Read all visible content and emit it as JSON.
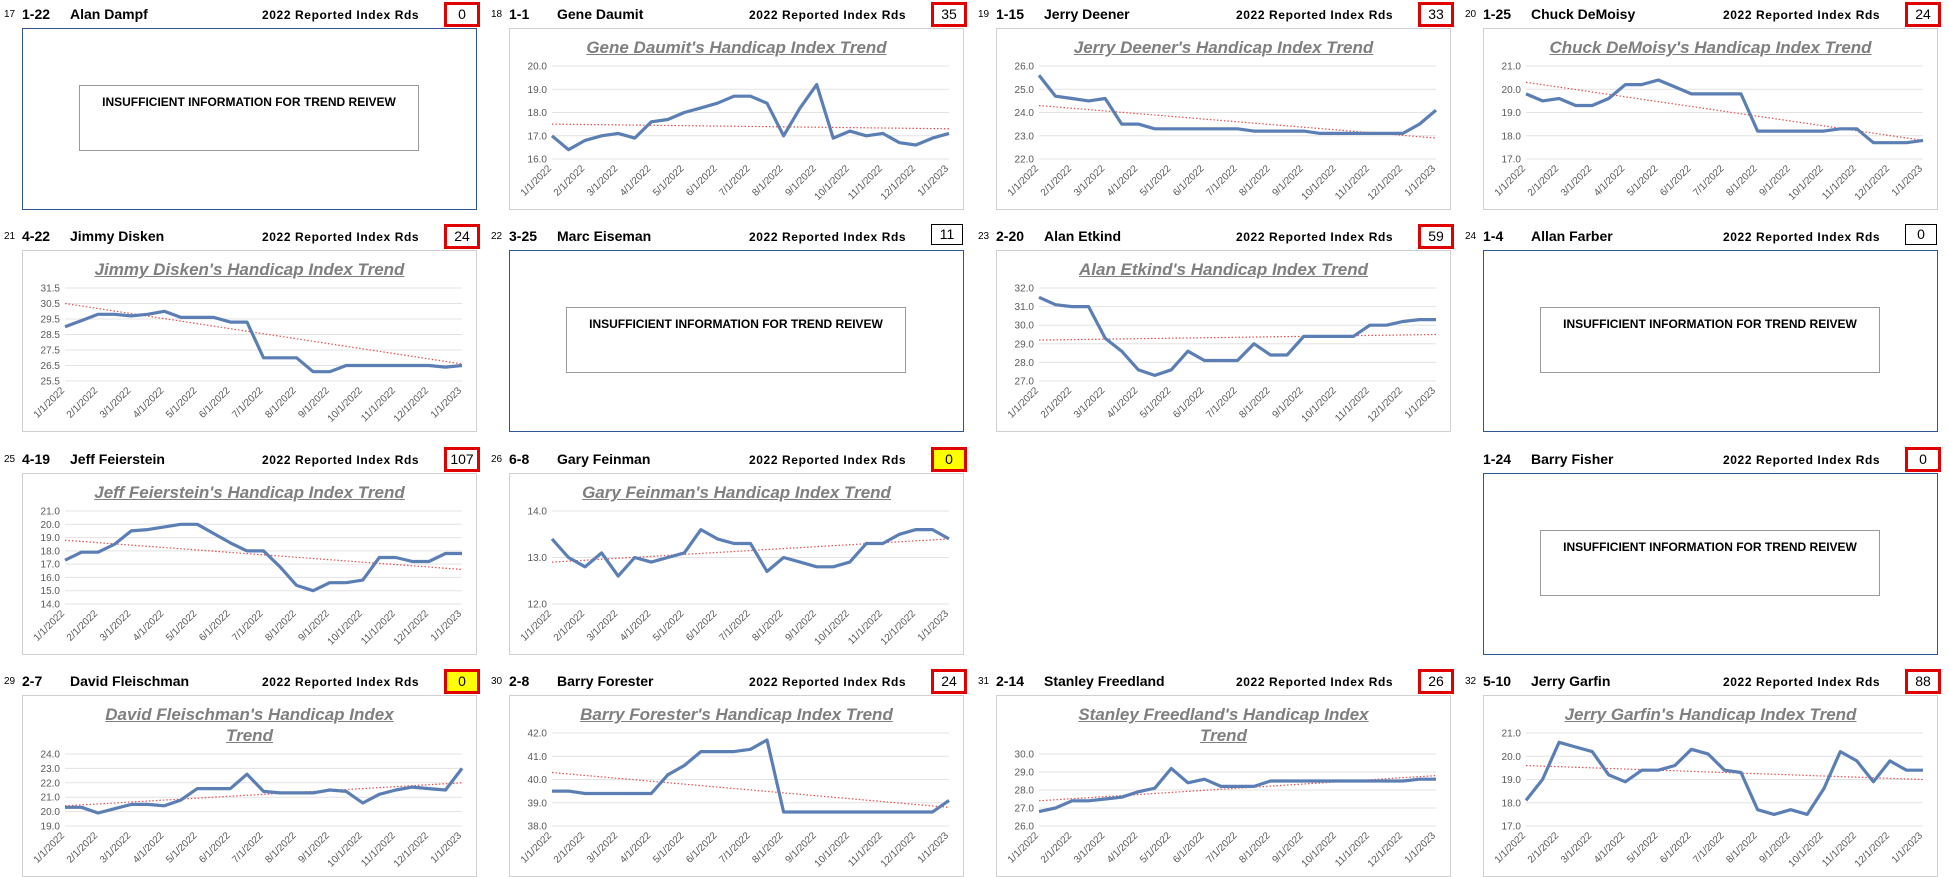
{
  "count_label": "2022 Reported Index Rds",
  "insufficient_text": "INSUFFICIENT INFORMATION FOR TREND REIVEW",
  "x_labels": [
    "1/1/2022",
    "2/1/2022",
    "3/1/2022",
    "4/1/2022",
    "5/1/2022",
    "6/1/2022",
    "7/1/2022",
    "8/1/2022",
    "9/1/2022",
    "10/1/2022",
    "11/1/2022",
    "12/1/2022",
    "1/1/2023"
  ],
  "line_color": "#5b7fb4",
  "trend_color": "#e05050",
  "players": [
    {
      "number": "17",
      "code": "1-22",
      "name": "Alan Dampf",
      "rounds": 0,
      "count_border": "#e00000",
      "count_fill": "#ffffff"
    },
    {
      "number": "18",
      "code": "1-1",
      "name": "Gene Daumit",
      "rounds": 35,
      "count_border": "#e00000",
      "count_fill": "#ffffff",
      "chart": {
        "title": "Gene Daumit's Handicap Index Trend",
        "ylim": [
          16,
          20
        ],
        "yticks": [
          {
            "value": 16,
            "label": "16.0"
          },
          {
            "value": 17,
            "label": "17.0"
          },
          {
            "value": 18,
            "label": "18.0"
          },
          {
            "value": 19,
            "label": "19.0"
          },
          {
            "value": 20,
            "label": "20.0"
          }
        ],
        "values": [
          17.0,
          16.4,
          16.8,
          17.0,
          17.1,
          16.9,
          17.6,
          17.7,
          18.0,
          18.2,
          18.4,
          18.7,
          18.7,
          18.4,
          17.0,
          18.2,
          19.2,
          16.9,
          17.2,
          17.0,
          17.1,
          16.7,
          16.6,
          16.9,
          17.1
        ],
        "trend": [
          17.5,
          17.3
        ]
      }
    },
    {
      "number": "19",
      "code": "1-15",
      "name": "Jerry Deener",
      "rounds": 33,
      "count_border": "#e00000",
      "count_fill": "#ffffff",
      "chart": {
        "title": "Jerry Deener's Handicap Index Trend",
        "ylim": [
          22,
          26
        ],
        "yticks": [
          {
            "value": 22,
            "label": "22.0"
          },
          {
            "value": 23,
            "label": "23.0"
          },
          {
            "value": 24,
            "label": "24.0"
          },
          {
            "value": 25,
            "label": "25.0"
          },
          {
            "value": 26,
            "label": "26.0"
          }
        ],
        "values": [
          25.6,
          24.7,
          24.6,
          24.5,
          24.6,
          23.5,
          23.5,
          23.3,
          23.3,
          23.3,
          23.3,
          23.3,
          23.3,
          23.2,
          23.2,
          23.2,
          23.2,
          23.1,
          23.1,
          23.1,
          23.1,
          23.1,
          23.1,
          23.5,
          24.1
        ],
        "trend": [
          24.3,
          22.9
        ]
      }
    },
    {
      "number": "20",
      "code": "1-25",
      "name": "Chuck DeMoisy",
      "rounds": 24,
      "count_border": "#e00000",
      "count_fill": "#ffffff",
      "chart": {
        "title": "Chuck DeMoisy's Handicap Index Trend",
        "ylim": [
          17,
          21
        ],
        "yticks": [
          {
            "value": 17,
            "label": "17.0"
          },
          {
            "value": 18,
            "label": "18.0"
          },
          {
            "value": 19,
            "label": "19.0"
          },
          {
            "value": 20,
            "label": "20.0"
          },
          {
            "value": 21,
            "label": "21.0"
          }
        ],
        "values": [
          19.8,
          19.5,
          19.6,
          19.3,
          19.3,
          19.6,
          20.2,
          20.2,
          20.4,
          20.1,
          19.8,
          19.8,
          19.8,
          19.8,
          18.2,
          18.2,
          18.2,
          18.2,
          18.2,
          18.3,
          18.3,
          17.7,
          17.7,
          17.7,
          17.8
        ],
        "trend": [
          20.3,
          17.8
        ]
      }
    },
    {
      "number": "21",
      "code": "4-22",
      "name": "Jimmy Disken",
      "rounds": 24,
      "count_border": "#e00000",
      "count_fill": "#ffffff",
      "chart": {
        "title": "Jimmy Disken's Handicap Index Trend",
        "ylim": [
          25.5,
          31.5
        ],
        "yticks": [
          25.5,
          26.5,
          27.5,
          28.5,
          29.5,
          30.5,
          31.5
        ],
        "values": [
          29.0,
          29.4,
          29.8,
          29.8,
          29.7,
          29.8,
          30.0,
          29.6,
          29.6,
          29.6,
          29.3,
          29.3,
          27.0,
          27.0,
          27.0,
          26.1,
          26.1,
          26.5,
          26.5,
          26.5,
          26.5,
          26.5,
          26.5,
          26.4,
          26.5
        ],
        "trend": [
          30.5,
          26.6
        ]
      }
    },
    {
      "number": "22",
      "code": "3-25",
      "name": "Marc Eiseman",
      "rounds": 11,
      "count_border": "#000000",
      "count_fill": "#ffffff"
    },
    {
      "number": "23",
      "code": "2-20",
      "name": "Alan Etkind",
      "rounds": 59,
      "count_border": "#e00000",
      "count_fill": "#ffffff",
      "chart": {
        "title": "Alan Etkind's Handicap Index Trend",
        "ylim": [
          27,
          32
        ],
        "yticks": [
          {
            "value": 27,
            "label": "27.0"
          },
          {
            "value": 28,
            "label": "28.0"
          },
          {
            "value": 29,
            "label": "29.0"
          },
          {
            "value": 30,
            "label": "30.0"
          },
          {
            "value": 31,
            "label": "31.0"
          },
          {
            "value": 32,
            "label": "32.0"
          }
        ],
        "values": [
          31.5,
          31.1,
          31.0,
          31.0,
          29.3,
          28.6,
          27.6,
          27.3,
          27.6,
          28.6,
          28.1,
          28.1,
          28.1,
          29.0,
          28.4,
          28.4,
          29.4,
          29.4,
          29.4,
          29.4,
          30.0,
          30.0,
          30.2,
          30.3,
          30.3
        ],
        "trend": [
          29.2,
          29.5
        ]
      }
    },
    {
      "number": "24",
      "code": "1-4",
      "name": "Allan Farber",
      "rounds": 0,
      "count_border": "#000000",
      "count_fill": "#ffffff"
    },
    {
      "number": "25",
      "code": "4-19",
      "name": "Jeff Feierstein",
      "rounds": 107,
      "count_border": "#e00000",
      "count_fill": "#ffffff",
      "chart": {
        "title": "Jeff Feierstein's Handicap Index Trend",
        "ylim": [
          14,
          21
        ],
        "yticks": [
          {
            "value": 14,
            "label": "14.0"
          },
          {
            "value": 15,
            "label": "15.0"
          },
          {
            "value": 16,
            "label": "16.0"
          },
          {
            "value": 17,
            "label": "17.0"
          },
          {
            "value": 18,
            "label": "18.0"
          },
          {
            "value": 19,
            "label": "19.0"
          },
          {
            "value": 20,
            "label": "20.0"
          },
          {
            "value": 21,
            "label": "21.0"
          }
        ],
        "values": [
          17.3,
          17.9,
          17.9,
          18.5,
          19.5,
          19.6,
          19.8,
          20.0,
          20.0,
          19.3,
          18.6,
          18.0,
          18.0,
          16.8,
          15.4,
          15.0,
          15.6,
          15.6,
          15.8,
          17.5,
          17.5,
          17.2,
          17.2,
          17.8,
          17.8
        ],
        "trend": [
          18.8,
          16.6
        ]
      }
    },
    {
      "number": "26",
      "code": "6-8",
      "name": "Gary Feinman",
      "rounds": 0,
      "count_border": "#e00000",
      "count_fill": "#ffff00",
      "chart": {
        "title": "Gary Feinman's Handicap Index Trend",
        "ylim": [
          12,
          14
        ],
        "yticks": [
          {
            "value": 12,
            "label": "12.0"
          },
          {
            "value": 13,
            "label": "13.0"
          },
          {
            "value": 14,
            "label": "14.0"
          }
        ],
        "values": [
          13.4,
          13.0,
          12.8,
          13.1,
          12.6,
          13.0,
          12.9,
          13.0,
          13.1,
          13.6,
          13.4,
          13.3,
          13.3,
          12.7,
          13.0,
          12.9,
          12.8,
          12.8,
          12.9,
          13.3,
          13.3,
          13.5,
          13.6,
          13.6,
          13.4
        ],
        "trend": [
          12.9,
          13.4
        ]
      }
    },
    {
      "code": "1-24",
      "name": "Barry Fisher",
      "rounds": 0,
      "count_border": "#e00000",
      "count_fill": "#ffffff"
    },
    {
      "number": "29",
      "code": "2-7",
      "name": "David  Fleischman",
      "rounds": 0,
      "count_border": "#e00000",
      "count_fill": "#ffff00",
      "chart": {
        "title": "David Fleischman's Handicap Index Trend",
        "ylim": [
          19,
          24
        ],
        "yticks": [
          {
            "value": 19,
            "label": "19.0"
          },
          {
            "value": 20,
            "label": "20.0"
          },
          {
            "value": 21,
            "label": "21.0"
          },
          {
            "value": 22,
            "label": "22.0"
          },
          {
            "value": 23,
            "label": "23.0"
          },
          {
            "value": 24,
            "label": "24.0"
          }
        ],
        "values": [
          20.3,
          20.3,
          19.9,
          20.2,
          20.5,
          20.5,
          20.4,
          20.8,
          21.6,
          21.6,
          21.6,
          22.6,
          21.4,
          21.3,
          21.3,
          21.3,
          21.5,
          21.4,
          20.6,
          21.2,
          21.5,
          21.7,
          21.6,
          21.5,
          23.0
        ],
        "trend": [
          20.4,
          22.0
        ]
      }
    },
    {
      "number": "30",
      "code": "2-8",
      "name": "Barry Forester",
      "rounds": 24,
      "count_border": "#e00000",
      "count_fill": "#ffffff",
      "chart": {
        "title": "Barry Forester's Handicap Index Trend",
        "ylim": [
          38,
          42
        ],
        "yticks": [
          {
            "value": 38,
            "label": "38.0"
          },
          {
            "value": 39,
            "label": "39.0"
          },
          {
            "value": 40,
            "label": "40.0"
          },
          {
            "value": 41,
            "label": "41.0"
          },
          {
            "value": 42,
            "label": "42.0"
          }
        ],
        "values": [
          39.5,
          39.5,
          39.4,
          39.4,
          39.4,
          39.4,
          39.4,
          40.2,
          40.6,
          41.2,
          41.2,
          41.2,
          41.3,
          41.7,
          38.6,
          38.6,
          38.6,
          38.6,
          38.6,
          38.6,
          38.6,
          38.6,
          38.6,
          38.6,
          39.1
        ],
        "trend": [
          40.3,
          38.8
        ]
      }
    },
    {
      "number": "31",
      "code": "2-14",
      "name": "Stanley Freedland",
      "rounds": 26,
      "count_border": "#e00000",
      "count_fill": "#ffffff",
      "chart": {
        "title": "Stanley Freedland's Handicap Index Trend",
        "ylim": [
          26,
          30
        ],
        "yticks": [
          {
            "value": 26,
            "label": "26.0"
          },
          {
            "value": 27,
            "label": "27.0"
          },
          {
            "value": 28,
            "label": "28.0"
          },
          {
            "value": 29,
            "label": "29.0"
          },
          {
            "value": 30,
            "label": "30.0"
          }
        ],
        "values": [
          26.8,
          27.0,
          27.4,
          27.4,
          27.5,
          27.6,
          27.9,
          28.1,
          29.2,
          28.4,
          28.6,
          28.2,
          28.2,
          28.2,
          28.5,
          28.5,
          28.5,
          28.5,
          28.5,
          28.5,
          28.5,
          28.5,
          28.5,
          28.6,
          28.6
        ],
        "trend": [
          27.4,
          28.8
        ]
      }
    },
    {
      "number": "32",
      "code": "5-10",
      "name": "Jerry Garfin",
      "rounds": 88,
      "count_border": "#e00000",
      "count_fill": "#ffffff",
      "chart": {
        "title": "Jerry Garfin's Handicap Index Trend",
        "ylim": [
          17,
          21
        ],
        "yticks": [
          {
            "value": 17,
            "label": "17.0"
          },
          {
            "value": 18,
            "label": "18.0"
          },
          {
            "value": 19,
            "label": "19.0"
          },
          {
            "value": 20,
            "label": "20.0"
          },
          {
            "value": 21,
            "label": "21.0"
          }
        ],
        "values": [
          18.1,
          19.0,
          20.6,
          20.4,
          20.2,
          19.2,
          18.9,
          19.4,
          19.4,
          19.6,
          20.3,
          20.1,
          19.4,
          19.3,
          17.7,
          17.5,
          17.7,
          17.5,
          18.6,
          20.2,
          19.8,
          18.9,
          19.8,
          19.4,
          19.4
        ],
        "trend": [
          19.6,
          19.0
        ]
      }
    }
  ]
}
